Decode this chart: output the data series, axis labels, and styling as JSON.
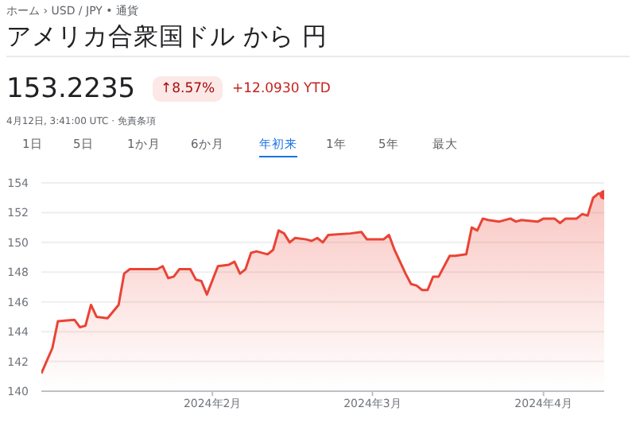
{
  "chart_data": {
    "type": "area",
    "title": "アメリカ合衆国ドル から 円",
    "annotations": [
      "ホーム › USD / JPY • 通貨",
      "153.2235",
      "↑8.57%",
      "+12.0930 YTD",
      "4月12日, 3:41:00 UTC · 免責条項",
      "1日",
      "5日",
      "1か月",
      "6か月",
      "年初来",
      "1年",
      "5年",
      "最大"
    ],
    "x": [
      "2024-01-01",
      "2024-01-03",
      "2024-01-04",
      "2024-01-07",
      "2024-01-08",
      "2024-01-09",
      "2024-01-10",
      "2024-01-11",
      "2024-01-13",
      "2024-01-15",
      "2024-01-16",
      "2024-01-17",
      "2024-01-22",
      "2024-01-23",
      "2024-01-24",
      "2024-01-25",
      "2024-01-26",
      "2024-01-28",
      "2024-01-29",
      "2024-01-30",
      "2024-01-31",
      "2024-02-02",
      "2024-02-04",
      "2024-02-05",
      "2024-02-06",
      "2024-02-07",
      "2024-02-08",
      "2024-02-09",
      "2024-02-11",
      "2024-02-12",
      "2024-02-13",
      "2024-02-14",
      "2024-02-15",
      "2024-02-16",
      "2024-02-18",
      "2024-02-19",
      "2024-02-20",
      "2024-02-21",
      "2024-02-22",
      "2024-02-26",
      "2024-02-28",
      "2024-02-29",
      "2024-03-03",
      "2024-03-04",
      "2024-03-05",
      "2024-03-07",
      "2024-03-08",
      "2024-03-09",
      "2024-03-10",
      "2024-03-11",
      "2024-03-12",
      "2024-03-13",
      "2024-03-15",
      "2024-03-16",
      "2024-03-18",
      "2024-03-19",
      "2024-03-20",
      "2024-03-21",
      "2024-03-22",
      "2024-03-24",
      "2024-03-26",
      "2024-03-27",
      "2024-03-28",
      "2024-03-31",
      "2024-04-01",
      "2024-04-03",
      "2024-04-04",
      "2024-04-05",
      "2024-04-07",
      "2024-04-08",
      "2024-04-09",
      "2024-04-10",
      "2024-04-11",
      "2024-04-12"
    ],
    "series": [
      {
        "color": "#ea4335",
        "values": [
          141.2,
          142.9,
          144.7,
          144.8,
          144.3,
          144.4,
          145.8,
          145.0,
          144.9,
          145.8,
          147.9,
          148.2,
          148.2,
          148.4,
          147.6,
          147.7,
          148.2,
          148.2,
          147.5,
          147.4,
          146.5,
          148.4,
          148.5,
          148.7,
          147.9,
          148.2,
          149.3,
          149.4,
          149.2,
          149.5,
          150.8,
          150.6,
          150.0,
          150.3,
          150.2,
          150.1,
          150.3,
          150.0,
          150.5,
          150.6,
          150.7,
          150.2,
          150.2,
          150.5,
          149.5,
          147.9,
          147.2,
          147.1,
          146.8,
          146.8,
          147.7,
          147.7,
          149.1,
          149.1,
          149.2,
          151.0,
          150.8,
          151.6,
          151.5,
          151.4,
          151.6,
          151.4,
          151.5,
          151.4,
          151.6,
          151.6,
          151.3,
          151.6,
          151.6,
          151.9,
          151.8,
          153.0,
          153.3,
          153.2
        ]
      },
      {
        "type": "scatter",
        "color": "#ea4335",
        "x": [
          "2024-04-12"
        ],
        "values": [
          153.2
        ],
        "marker": "circle"
      }
    ],
    "xlim": [
      "2024-01-01",
      "2024-04-12"
    ],
    "xticks": [
      {
        "value": "2024-02-01",
        "label": "2024年2月"
      },
      {
        "value": "2024-03-01",
        "label": "2024年3月"
      },
      {
        "value": "2024-04-01",
        "label": "2024年4月"
      }
    ],
    "ylim": [
      140,
      154
    ],
    "yticks": [
      140,
      142,
      144,
      146,
      148,
      150,
      152,
      154
    ],
    "grid": "y",
    "marker": "none"
  }
}
